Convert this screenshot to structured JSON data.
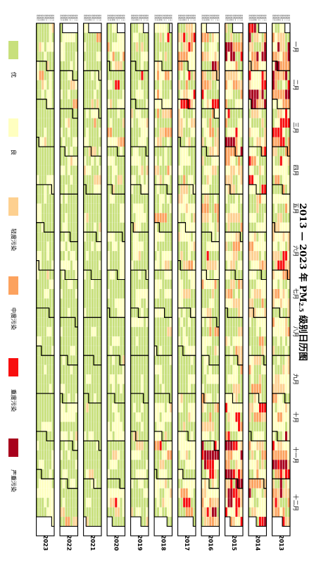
{
  "chart_data": {
    "type": "heatmap",
    "layout": "calendar",
    "title_main": "2013 — 2023 年 PM",
    "title_sub": "2.5",
    "title_tail": " 级别日历图",
    "years": [
      "2013",
      "2014",
      "2015",
      "2016",
      "2017",
      "2018",
      "2019",
      "2020",
      "2021",
      "2022",
      "2023"
    ],
    "months": [
      "一月",
      "二月",
      "三月",
      "四月",
      "五月",
      "六月",
      "七月",
      "八月",
      "九月",
      "十月",
      "十一月",
      "十二月"
    ],
    "weekday_labels": [
      "星期日",
      "星期一",
      "星期二",
      "星期三",
      "星期四",
      "星期五",
      "星期六"
    ],
    "categories": [
      {
        "name": "优",
        "color": "#c8e07c"
      },
      {
        "name": "良",
        "color": "#ffffc0"
      },
      {
        "name": "轻度污染",
        "color": "#fdd090"
      },
      {
        "name": "中度污染",
        "color": "#fca25e"
      },
      {
        "name": "重度污染",
        "color": "#f80e0e"
      },
      {
        "name": "严重污染",
        "color": "#a8001c"
      }
    ],
    "legend_position": "left",
    "monthly_category_weights": {
      "2013": [
        [
          10,
          20,
          20,
          15,
          15,
          20
        ],
        [
          10,
          25,
          20,
          15,
          15,
          15
        ],
        [
          25,
          25,
          20,
          15,
          10,
          5
        ],
        [
          30,
          35,
          20,
          10,
          5,
          0
        ],
        [
          30,
          35,
          25,
          8,
          2,
          0
        ],
        [
          25,
          35,
          25,
          10,
          5,
          0
        ],
        [
          35,
          35,
          20,
          8,
          2,
          0
        ],
        [
          40,
          35,
          18,
          5,
          2,
          0
        ],
        [
          40,
          35,
          15,
          7,
          3,
          0
        ],
        [
          30,
          30,
          20,
          10,
          7,
          3
        ],
        [
          25,
          25,
          20,
          15,
          10,
          5
        ],
        [
          20,
          20,
          20,
          15,
          15,
          10
        ]
      ],
      "2014": [
        [
          15,
          25,
          20,
          15,
          15,
          10
        ],
        [
          10,
          20,
          20,
          15,
          20,
          15
        ],
        [
          25,
          30,
          20,
          15,
          7,
          3
        ],
        [
          35,
          35,
          18,
          8,
          4,
          0
        ],
        [
          40,
          35,
          18,
          5,
          2,
          0
        ],
        [
          35,
          35,
          20,
          8,
          2,
          0
        ],
        [
          40,
          35,
          18,
          5,
          2,
          0
        ],
        [
          45,
          35,
          15,
          4,
          1,
          0
        ],
        [
          45,
          35,
          15,
          4,
          1,
          0
        ],
        [
          30,
          30,
          20,
          10,
          8,
          2
        ],
        [
          25,
          30,
          20,
          12,
          10,
          3
        ],
        [
          25,
          25,
          20,
          12,
          12,
          6
        ]
      ],
      "2015": [
        [
          20,
          25,
          20,
          15,
          12,
          8
        ],
        [
          20,
          25,
          20,
          15,
          12,
          8
        ],
        [
          30,
          30,
          20,
          10,
          7,
          3
        ],
        [
          40,
          35,
          15,
          7,
          3,
          0
        ],
        [
          45,
          35,
          15,
          4,
          1,
          0
        ],
        [
          40,
          35,
          18,
          5,
          2,
          0
        ],
        [
          45,
          35,
          15,
          4,
          1,
          0
        ],
        [
          50,
          35,
          12,
          3,
          0,
          0
        ],
        [
          50,
          35,
          12,
          3,
          0,
          0
        ],
        [
          35,
          30,
          18,
          9,
          6,
          2
        ],
        [
          25,
          25,
          18,
          14,
          12,
          6
        ],
        [
          15,
          20,
          18,
          15,
          18,
          14
        ]
      ],
      "2016": [
        [
          30,
          25,
          18,
          12,
          10,
          5
        ],
        [
          35,
          30,
          18,
          10,
          5,
          2
        ],
        [
          35,
          30,
          18,
          10,
          5,
          2
        ],
        [
          45,
          35,
          15,
          4,
          1,
          0
        ],
        [
          50,
          35,
          12,
          3,
          0,
          0
        ],
        [
          45,
          35,
          15,
          4,
          1,
          0
        ],
        [
          50,
          35,
          12,
          3,
          0,
          0
        ],
        [
          55,
          35,
          8,
          2,
          0,
          0
        ],
        [
          55,
          35,
          8,
          2,
          0,
          0
        ],
        [
          40,
          30,
          18,
          7,
          4,
          1
        ],
        [
          30,
          25,
          18,
          12,
          10,
          5
        ],
        [
          20,
          20,
          18,
          15,
          17,
          10
        ]
      ],
      "2017": [
        [
          25,
          25,
          20,
          12,
          10,
          8
        ],
        [
          40,
          30,
          18,
          8,
          4,
          0
        ],
        [
          45,
          35,
          15,
          4,
          1,
          0
        ],
        [
          50,
          35,
          12,
          3,
          0,
          0
        ],
        [
          50,
          35,
          12,
          3,
          0,
          0
        ],
        [
          50,
          35,
          12,
          3,
          0,
          0
        ],
        [
          55,
          35,
          8,
          2,
          0,
          0
        ],
        [
          60,
          32,
          7,
          1,
          0,
          0
        ],
        [
          60,
          32,
          7,
          1,
          0,
          0
        ],
        [
          50,
          30,
          14,
          4,
          2,
          0
        ],
        [
          45,
          30,
          15,
          6,
          4,
          0
        ],
        [
          45,
          30,
          15,
          6,
          4,
          0
        ]
      ],
      "2018": [
        [
          50,
          30,
          12,
          5,
          3,
          0
        ],
        [
          45,
          30,
          15,
          6,
          4,
          0
        ],
        [
          50,
          30,
          14,
          4,
          2,
          0
        ],
        [
          55,
          35,
          8,
          2,
          0,
          0
        ],
        [
          60,
          32,
          7,
          1,
          0,
          0
        ],
        [
          55,
          35,
          8,
          2,
          0,
          0
        ],
        [
          65,
          30,
          5,
          0,
          0,
          0
        ],
        [
          70,
          27,
          3,
          0,
          0,
          0
        ],
        [
          70,
          27,
          3,
          0,
          0,
          0
        ],
        [
          60,
          30,
          8,
          2,
          0,
          0
        ],
        [
          55,
          30,
          10,
          3,
          2,
          0
        ],
        [
          55,
          30,
          10,
          3,
          2,
          0
        ]
      ],
      "2019": [
        [
          50,
          30,
          12,
          5,
          3,
          0
        ],
        [
          55,
          30,
          10,
          3,
          2,
          0
        ],
        [
          55,
          35,
          8,
          2,
          0,
          0
        ],
        [
          60,
          32,
          7,
          1,
          0,
          0
        ],
        [
          65,
          30,
          5,
          0,
          0,
          0
        ],
        [
          60,
          32,
          7,
          1,
          0,
          0
        ],
        [
          70,
          27,
          3,
          0,
          0,
          0
        ],
        [
          75,
          23,
          2,
          0,
          0,
          0
        ],
        [
          75,
          23,
          2,
          0,
          0,
          0
        ],
        [
          65,
          28,
          6,
          1,
          0,
          0
        ],
        [
          60,
          28,
          9,
          2,
          1,
          0
        ],
        [
          55,
          30,
          10,
          3,
          2,
          0
        ]
      ],
      "2020": [
        [
          50,
          30,
          12,
          5,
          3,
          0
        ],
        [
          55,
          30,
          10,
          3,
          2,
          0
        ],
        [
          60,
          30,
          8,
          2,
          0,
          0
        ],
        [
          70,
          27,
          3,
          0,
          0,
          0
        ],
        [
          70,
          27,
          3,
          0,
          0,
          0
        ],
        [
          65,
          30,
          5,
          0,
          0,
          0
        ],
        [
          75,
          23,
          2,
          0,
          0,
          0
        ],
        [
          80,
          18,
          2,
          0,
          0,
          0
        ],
        [
          80,
          18,
          2,
          0,
          0,
          0
        ],
        [
          70,
          25,
          5,
          0,
          0,
          0
        ],
        [
          65,
          28,
          6,
          1,
          0,
          0
        ],
        [
          60,
          28,
          9,
          2,
          1,
          0
        ]
      ],
      "2021": [
        [
          60,
          28,
          9,
          2,
          1,
          0
        ],
        [
          55,
          30,
          10,
          3,
          2,
          0
        ],
        [
          60,
          30,
          8,
          2,
          0,
          0
        ],
        [
          70,
          27,
          3,
          0,
          0,
          0
        ],
        [
          75,
          23,
          2,
          0,
          0,
          0
        ],
        [
          70,
          27,
          3,
          0,
          0,
          0
        ],
        [
          80,
          18,
          2,
          0,
          0,
          0
        ],
        [
          85,
          14,
          1,
          0,
          0,
          0
        ],
        [
          85,
          14,
          1,
          0,
          0,
          0
        ],
        [
          75,
          22,
          3,
          0,
          0,
          0
        ],
        [
          70,
          25,
          5,
          0,
          0,
          0
        ],
        [
          65,
          28,
          6,
          1,
          0,
          0
        ]
      ],
      "2022": [
        [
          65,
          28,
          6,
          1,
          0,
          0
        ],
        [
          65,
          28,
          6,
          1,
          0,
          0
        ],
        [
          70,
          27,
          3,
          0,
          0,
          0
        ],
        [
          75,
          23,
          2,
          0,
          0,
          0
        ],
        [
          80,
          18,
          2,
          0,
          0,
          0
        ],
        [
          75,
          23,
          2,
          0,
          0,
          0
        ],
        [
          85,
          14,
          1,
          0,
          0,
          0
        ],
        [
          85,
          14,
          1,
          0,
          0,
          0
        ],
        [
          85,
          14,
          1,
          0,
          0,
          0
        ],
        [
          80,
          18,
          2,
          0,
          0,
          0
        ],
        [
          70,
          25,
          5,
          0,
          0,
          0
        ],
        [
          65,
          28,
          6,
          1,
          0,
          0
        ]
      ],
      "2023": [
        [
          60,
          28,
          9,
          2,
          1,
          0
        ],
        [
          60,
          28,
          9,
          2,
          1,
          0
        ],
        [
          65,
          28,
          6,
          1,
          0,
          0
        ],
        [
          70,
          27,
          3,
          0,
          0,
          0
        ],
        [
          75,
          23,
          2,
          0,
          0,
          0
        ],
        [
          75,
          23,
          2,
          0,
          0,
          0
        ],
        [
          80,
          18,
          2,
          0,
          0,
          0
        ],
        [
          85,
          14,
          1,
          0,
          0,
          0
        ],
        [
          85,
          14,
          1,
          0,
          0,
          0
        ],
        [
          80,
          18,
          2,
          0,
          0,
          0
        ],
        [
          70,
          25,
          5,
          0,
          0,
          0
        ],
        [
          65,
          28,
          6,
          1,
          0,
          0
        ]
      ]
    }
  }
}
